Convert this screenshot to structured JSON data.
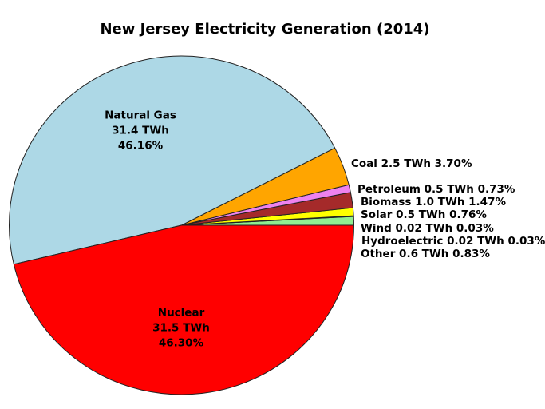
{
  "chart_data": {
    "type": "pie",
    "title": "New Jersey Electricity Generation (2014)",
    "unit": "TWh",
    "start_angle_deg": 0,
    "direction": "counterclockwise",
    "legend_position": "none",
    "edge_color": "#222222",
    "background_color": "#FFFFFF",
    "slices": [
      {
        "name": "Other",
        "twh": "0.6",
        "pct": "0.83",
        "color": "#90EE90",
        "label_style": "outside",
        "label_x": 452,
        "label_y": 318
      },
      {
        "name": "Hydroelectric",
        "twh": "0.02",
        "pct": "0.03",
        "color": "#FFFFFF",
        "label_style": "outside",
        "label_x": 453,
        "label_y": 302
      },
      {
        "name": "Wind",
        "twh": "0.02",
        "pct": "0.03",
        "color": "#FFFFFF",
        "label_style": "outside",
        "label_x": 452,
        "label_y": 285.5
      },
      {
        "name": "Solar",
        "twh": "0.5",
        "pct": "0.76",
        "color": "#FFFF00",
        "label_style": "outside",
        "label_x": 452,
        "label_y": 269
      },
      {
        "name": "Biomass",
        "twh": "1.0",
        "pct": "1.47",
        "color": "#A52A2A",
        "label_style": "outside",
        "label_x": 452,
        "label_y": 252.5
      },
      {
        "name": "Petroleum",
        "twh": "0.5",
        "pct": "0.73",
        "color": "#EE82EE",
        "label_style": "outside",
        "label_x": 448,
        "label_y": 237
      },
      {
        "name": "Coal",
        "twh": "2.5",
        "pct": "3.70",
        "color": "#FFA500",
        "label_style": "outside",
        "label_x": 440,
        "label_y": 205
      },
      {
        "name": "Natural Gas",
        "twh": "31.4",
        "pct": "46.16",
        "color": "#ADD8E6",
        "label_style": "inside",
        "label_x": 176,
        "label_y": 164
      },
      {
        "name": "Nuclear",
        "twh": "31.5",
        "pct": "46.30",
        "color": "#FF0000",
        "label_style": "inside",
        "label_x": 227,
        "label_y": 411
      }
    ]
  }
}
